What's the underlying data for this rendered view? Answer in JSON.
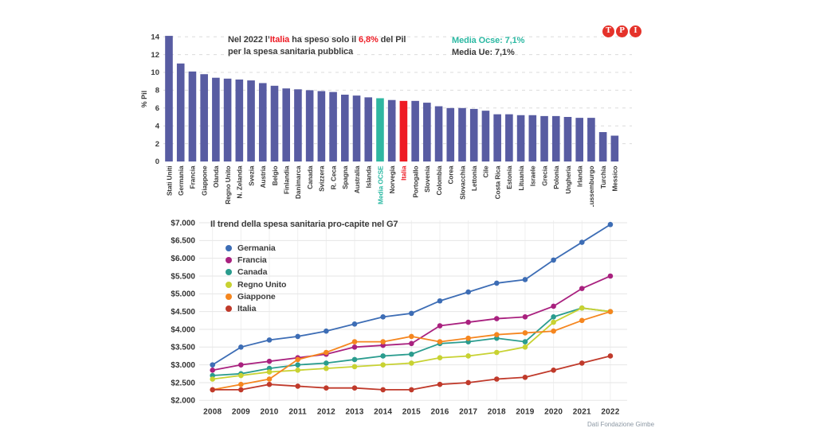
{
  "logo": {
    "letters": [
      "T",
      "P",
      "I"
    ],
    "color": "#e5322a"
  },
  "chart_data": [
    {
      "type": "bar",
      "title": "Nel 2022 l’Italia ha speso solo il 6,8% del Pil per la spesa sanitaria pubblica",
      "title_rich": {
        "pre": "Nel 2022 l’",
        "highlight_country": "Italia",
        "mid": " ha speso solo il ",
        "highlight_value": "6,8%",
        "post": " del Pil",
        "line2": "per la spesa sanitaria pubblica"
      },
      "annotations": {
        "media_ocse": "Media Ocse: 7,1%",
        "media_ue": "Media Ue: 7,1%"
      },
      "ylabel": "% Pil",
      "ylim": [
        0,
        14
      ],
      "yticks": [
        0,
        2,
        4,
        6,
        8,
        10,
        12,
        14
      ],
      "grid": true,
      "categories": [
        "Stati Uniti",
        "Germania",
        "Francia",
        "Giappone",
        "Olanda",
        "Regno Unito",
        "N. Zelanda",
        "Svezia",
        "Austria",
        "Belgio",
        "Finlandia",
        "Danimarca",
        "Canada",
        "Svizzera",
        "R. Ceca",
        "Spagna",
        "Australia",
        "Islanda",
        "Media OCSE",
        "Norvegia",
        "Italia",
        "Portogallo",
        "Slovenia",
        "Colombia",
        "Corea",
        "Slovacchia",
        "Lettonia",
        "Cile",
        "Costa Rica",
        "Estonia",
        "Lituania",
        "Israele",
        "Grecia",
        "Polonia",
        "Ungheria",
        "Irlanda",
        "Lussemburgo",
        "Turchia",
        "Messico"
      ],
      "values": [
        14.1,
        11.0,
        10.1,
        9.8,
        9.4,
        9.3,
        9.2,
        9.1,
        8.8,
        8.5,
        8.2,
        8.1,
        8.0,
        7.9,
        7.8,
        7.5,
        7.4,
        7.2,
        7.1,
        6.9,
        6.8,
        6.8,
        6.6,
        6.2,
        6.0,
        6.0,
        5.9,
        5.7,
        5.3,
        5.3,
        5.2,
        5.2,
        5.1,
        5.1,
        5.0,
        4.9,
        4.9,
        3.3,
        2.9
      ],
      "bar_color": "#585ca2",
      "highlight_colors": {
        "Media OCSE": "#2fb7a1",
        "Italia": "#ee1b24"
      },
      "label_colors": {
        "Media OCSE": "#2cb9a3",
        "Italia": "#ee1b24"
      }
    },
    {
      "type": "line",
      "title": "Il trend della spesa sanitaria pro-capite nel G7",
      "x": [
        2008,
        2009,
        2010,
        2011,
        2012,
        2013,
        2014,
        2015,
        2016,
        2017,
        2018,
        2019,
        2020,
        2021,
        2022
      ],
      "ylim": [
        2000,
        7000
      ],
      "ytick_values": [
        7000,
        6500,
        6000,
        5500,
        5000,
        4500,
        4000,
        3500,
        3000,
        2500,
        2000
      ],
      "ytick_labels": [
        "$7.000",
        "$6.500",
        "$6.000",
        "$5.500",
        "$5.000",
        "$4.500",
        "$4.000",
        "$3.500",
        "$3.000",
        "$2.500",
        "$2.000"
      ],
      "grid": true,
      "legend_position": "upper-left",
      "series": [
        {
          "name": "Germania",
          "color": "#3d6db5",
          "values": [
            3000,
            3500,
            3700,
            3800,
            3950,
            4150,
            4350,
            4450,
            4800,
            5050,
            5300,
            5400,
            5950,
            6450,
            6950
          ]
        },
        {
          "name": "Francia",
          "color": "#a9217f",
          "values": [
            2850,
            3000,
            3100,
            3200,
            3300,
            3500,
            3550,
            3600,
            4100,
            4200,
            4300,
            4350,
            4650,
            5150,
            5500
          ]
        },
        {
          "name": "Canada",
          "color": "#2a9c8e",
          "values": [
            2700,
            2750,
            2900,
            3000,
            3050,
            3150,
            3250,
            3300,
            3600,
            3650,
            3750,
            3650,
            4350,
            4600,
            4500
          ]
        },
        {
          "name": "Regno Unito",
          "color": "#c8d232",
          "values": [
            2600,
            2700,
            2800,
            2850,
            2900,
            2950,
            3000,
            3050,
            3200,
            3250,
            3350,
            3500,
            4200,
            4600,
            4500
          ]
        },
        {
          "name": "Giappone",
          "color": "#f5861f",
          "values": [
            2300,
            2450,
            2600,
            3150,
            3350,
            3650,
            3650,
            3800,
            3650,
            3750,
            3850,
            3900,
            3950,
            4250,
            4500
          ]
        },
        {
          "name": "Italia",
          "color": "#c03a2b",
          "values": [
            2300,
            2300,
            2450,
            2400,
            2350,
            2350,
            2300,
            2300,
            2450,
            2500,
            2600,
            2650,
            2850,
            3050,
            3250
          ]
        }
      ],
      "source": "Dati Fondazione Gimbe"
    }
  ]
}
